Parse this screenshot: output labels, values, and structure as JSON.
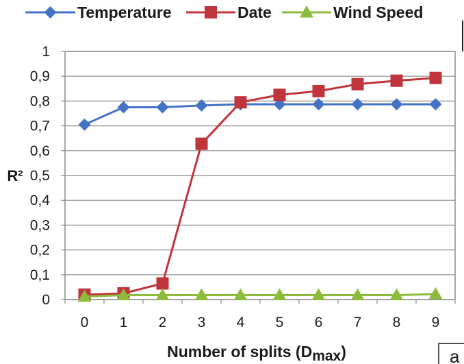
{
  "chart_data": {
    "type": "line",
    "x": [
      0,
      1,
      2,
      3,
      4,
      5,
      6,
      7,
      8,
      9
    ],
    "xticks": [
      "0",
      "1",
      "2",
      "3",
      "4",
      "5",
      "6",
      "7",
      "8",
      "9"
    ],
    "yticks": [
      "0",
      "0,1",
      "0,2",
      "0,3",
      "0,4",
      "0,5",
      "0,6",
      "0,7",
      "0,8",
      "0,9",
      "1"
    ],
    "ylim": [
      0,
      1
    ],
    "ylabel": "R²",
    "xlabel_main": "Number of splits (D",
    "xlabel_sub": "max",
    "xlabel_close": ")",
    "grid": true,
    "legend_position": "top",
    "panel_label": "a",
    "series": [
      {
        "name": "Temperature",
        "color": "#4472C4",
        "marker": "diamond",
        "values": [
          0.705,
          0.775,
          0.775,
          0.782,
          0.787,
          0.787,
          0.787,
          0.787,
          0.787,
          0.787
        ]
      },
      {
        "name": "Date",
        "color": "#C0343C",
        "marker": "square",
        "values": [
          0.02,
          0.025,
          0.065,
          0.628,
          0.795,
          0.825,
          0.84,
          0.868,
          0.882,
          0.893
        ]
      },
      {
        "name": "Wind Speed",
        "color": "#8DBB3C",
        "marker": "triangle",
        "values": [
          0.012,
          0.018,
          0.018,
          0.018,
          0.018,
          0.018,
          0.018,
          0.018,
          0.018,
          0.022
        ]
      }
    ]
  }
}
